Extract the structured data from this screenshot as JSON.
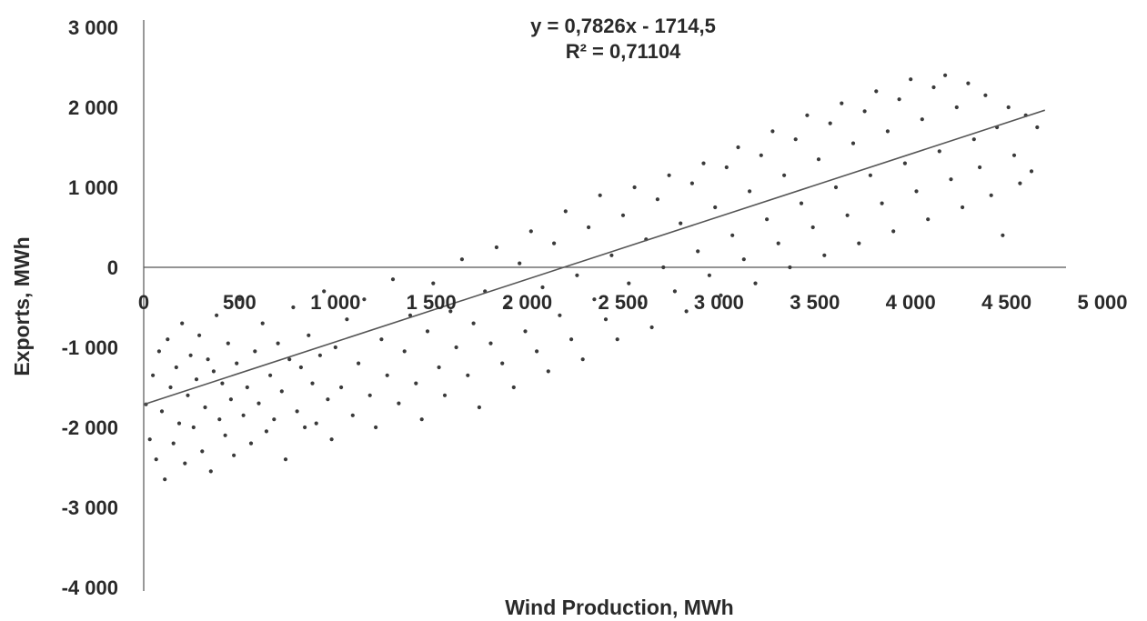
{
  "chart_data": {
    "type": "scatter",
    "xlabel": "Wind Production, MWh",
    "ylabel": "Exports, MWh",
    "xlim": [
      0,
      5000
    ],
    "ylim": [
      -4000,
      3000
    ],
    "x_ticks": [
      "0",
      "500",
      "1 000",
      "1 500",
      "2 000",
      "2 500",
      "3 000",
      "3 500",
      "4 000",
      "4 500",
      "5 000"
    ],
    "y_ticks": [
      "3 000",
      "2 000",
      "1 000",
      "0",
      "-1 000",
      "-2 000",
      "-3 000",
      "-4 000"
    ],
    "x_tick_values": [
      0,
      500,
      1000,
      1500,
      2000,
      2500,
      3000,
      3500,
      4000,
      4500,
      5000
    ],
    "y_tick_values": [
      3000,
      2000,
      1000,
      0,
      -1000,
      -2000,
      -3000,
      -4000
    ],
    "trendline": {
      "equation": "y = 0,7826x - 1714,5",
      "r_squared": "R² = 0,71104",
      "slope": 0.7826,
      "intercept": -1714.5,
      "x_range": [
        0,
        4700
      ]
    },
    "grid": false,
    "legend": "none",
    "colors": {
      "points": "#3a3a3a",
      "line": "#555555",
      "text": "#2a2a2a"
    },
    "points": [
      [
        12,
        -1712
      ],
      [
        32,
        -2150
      ],
      [
        48,
        -1350
      ],
      [
        65,
        -2400
      ],
      [
        80,
        -1050
      ],
      [
        95,
        -1800
      ],
      [
        110,
        -2650
      ],
      [
        125,
        -900
      ],
      [
        140,
        -1500
      ],
      [
        155,
        -2200
      ],
      [
        170,
        -1250
      ],
      [
        185,
        -1950
      ],
      [
        200,
        -700
      ],
      [
        215,
        -2450
      ],
      [
        230,
        -1600
      ],
      [
        245,
        -1100
      ],
      [
        260,
        -2000
      ],
      [
        275,
        -1400
      ],
      [
        290,
        -850
      ],
      [
        305,
        -2300
      ],
      [
        320,
        -1750
      ],
      [
        335,
        -1150
      ],
      [
        350,
        -2550
      ],
      [
        365,
        -1300
      ],
      [
        380,
        -600
      ],
      [
        395,
        -1900
      ],
      [
        410,
        -1450
      ],
      [
        425,
        -2100
      ],
      [
        440,
        -950
      ],
      [
        455,
        -1650
      ],
      [
        470,
        -2350
      ],
      [
        485,
        -1200
      ],
      [
        500,
        -400
      ],
      [
        520,
        -1850
      ],
      [
        540,
        -1500
      ],
      [
        560,
        -2200
      ],
      [
        580,
        -1050
      ],
      [
        600,
        -1700
      ],
      [
        620,
        -700
      ],
      [
        640,
        -2050
      ],
      [
        660,
        -1350
      ],
      [
        680,
        -1900
      ],
      [
        700,
        -950
      ],
      [
        720,
        -1550
      ],
      [
        740,
        -2400
      ],
      [
        760,
        -1150
      ],
      [
        780,
        -500
      ],
      [
        800,
        -1800
      ],
      [
        820,
        -1250
      ],
      [
        840,
        -2000
      ],
      [
        860,
        -850
      ],
      [
        880,
        -1450
      ],
      [
        900,
        -1950
      ],
      [
        920,
        -1100
      ],
      [
        940,
        -300
      ],
      [
        960,
        -1650
      ],
      [
        980,
        -2150
      ],
      [
        1000,
        -1000
      ],
      [
        1030,
        -1500
      ],
      [
        1060,
        -650
      ],
      [
        1090,
        -1850
      ],
      [
        1120,
        -1200
      ],
      [
        1150,
        -400
      ],
      [
        1180,
        -1600
      ],
      [
        1210,
        -2000
      ],
      [
        1240,
        -900
      ],
      [
        1270,
        -1350
      ],
      [
        1300,
        -150
      ],
      [
        1330,
        -1700
      ],
      [
        1360,
        -1050
      ],
      [
        1390,
        -600
      ],
      [
        1420,
        -1450
      ],
      [
        1450,
        -1900
      ],
      [
        1480,
        -800
      ],
      [
        1510,
        -200
      ],
      [
        1540,
        -1250
      ],
      [
        1570,
        -1600
      ],
      [
        1600,
        -550
      ],
      [
        1630,
        -1000
      ],
      [
        1660,
        100
      ],
      [
        1690,
        -1350
      ],
      [
        1720,
        -700
      ],
      [
        1750,
        -1750
      ],
      [
        1780,
        -300
      ],
      [
        1810,
        -950
      ],
      [
        1840,
        250
      ],
      [
        1870,
        -1200
      ],
      [
        1900,
        -500
      ],
      [
        1930,
        -1500
      ],
      [
        1960,
        50
      ],
      [
        1990,
        -800
      ],
      [
        2020,
        450
      ],
      [
        2050,
        -1050
      ],
      [
        2080,
        -250
      ],
      [
        2110,
        -1300
      ],
      [
        2140,
        300
      ],
      [
        2170,
        -600
      ],
      [
        2200,
        700
      ],
      [
        2230,
        -900
      ],
      [
        2260,
        -100
      ],
      [
        2290,
        -1150
      ],
      [
        2320,
        500
      ],
      [
        2350,
        -400
      ],
      [
        2380,
        900
      ],
      [
        2410,
        -650
      ],
      [
        2440,
        150
      ],
      [
        2470,
        -900
      ],
      [
        2500,
        650
      ],
      [
        2530,
        -200
      ],
      [
        2560,
        1000
      ],
      [
        2590,
        -450
      ],
      [
        2620,
        350
      ],
      [
        2650,
        -750
      ],
      [
        2680,
        850
      ],
      [
        2710,
        0
      ],
      [
        2740,
        1150
      ],
      [
        2770,
        -300
      ],
      [
        2800,
        550
      ],
      [
        2830,
        -550
      ],
      [
        2860,
        1050
      ],
      [
        2890,
        200
      ],
      [
        2920,
        1300
      ],
      [
        2950,
        -100
      ],
      [
        2980,
        750
      ],
      [
        3010,
        -350
      ],
      [
        3040,
        1250
      ],
      [
        3070,
        400
      ],
      [
        3100,
        1500
      ],
      [
        3130,
        100
      ],
      [
        3160,
        950
      ],
      [
        3190,
        -200
      ],
      [
        3220,
        1400
      ],
      [
        3250,
        600
      ],
      [
        3280,
        1700
      ],
      [
        3310,
        300
      ],
      [
        3340,
        1150
      ],
      [
        3370,
        0
      ],
      [
        3400,
        1600
      ],
      [
        3430,
        800
      ],
      [
        3460,
        1900
      ],
      [
        3490,
        500
      ],
      [
        3520,
        1350
      ],
      [
        3550,
        150
      ],
      [
        3580,
        1800
      ],
      [
        3610,
        1000
      ],
      [
        3640,
        2050
      ],
      [
        3670,
        650
      ],
      [
        3700,
        1550
      ],
      [
        3730,
        300
      ],
      [
        3760,
        1950
      ],
      [
        3790,
        1150
      ],
      [
        3820,
        2200
      ],
      [
        3850,
        800
      ],
      [
        3880,
        1700
      ],
      [
        3910,
        450
      ],
      [
        3940,
        2100
      ],
      [
        3970,
        1300
      ],
      [
        4000,
        2350
      ],
      [
        4030,
        950
      ],
      [
        4060,
        1850
      ],
      [
        4090,
        600
      ],
      [
        4120,
        2250
      ],
      [
        4150,
        1450
      ],
      [
        4180,
        2400
      ],
      [
        4210,
        1100
      ],
      [
        4240,
        2000
      ],
      [
        4270,
        750
      ],
      [
        4300,
        2300
      ],
      [
        4330,
        1600
      ],
      [
        4360,
        1250
      ],
      [
        4390,
        2150
      ],
      [
        4420,
        900
      ],
      [
        4450,
        1750
      ],
      [
        4480,
        400
      ],
      [
        4510,
        2000
      ],
      [
        4540,
        1400
      ],
      [
        4570,
        1050
      ],
      [
        4600,
        1900
      ],
      [
        4630,
        1200
      ],
      [
        4660,
        1750
      ]
    ]
  }
}
